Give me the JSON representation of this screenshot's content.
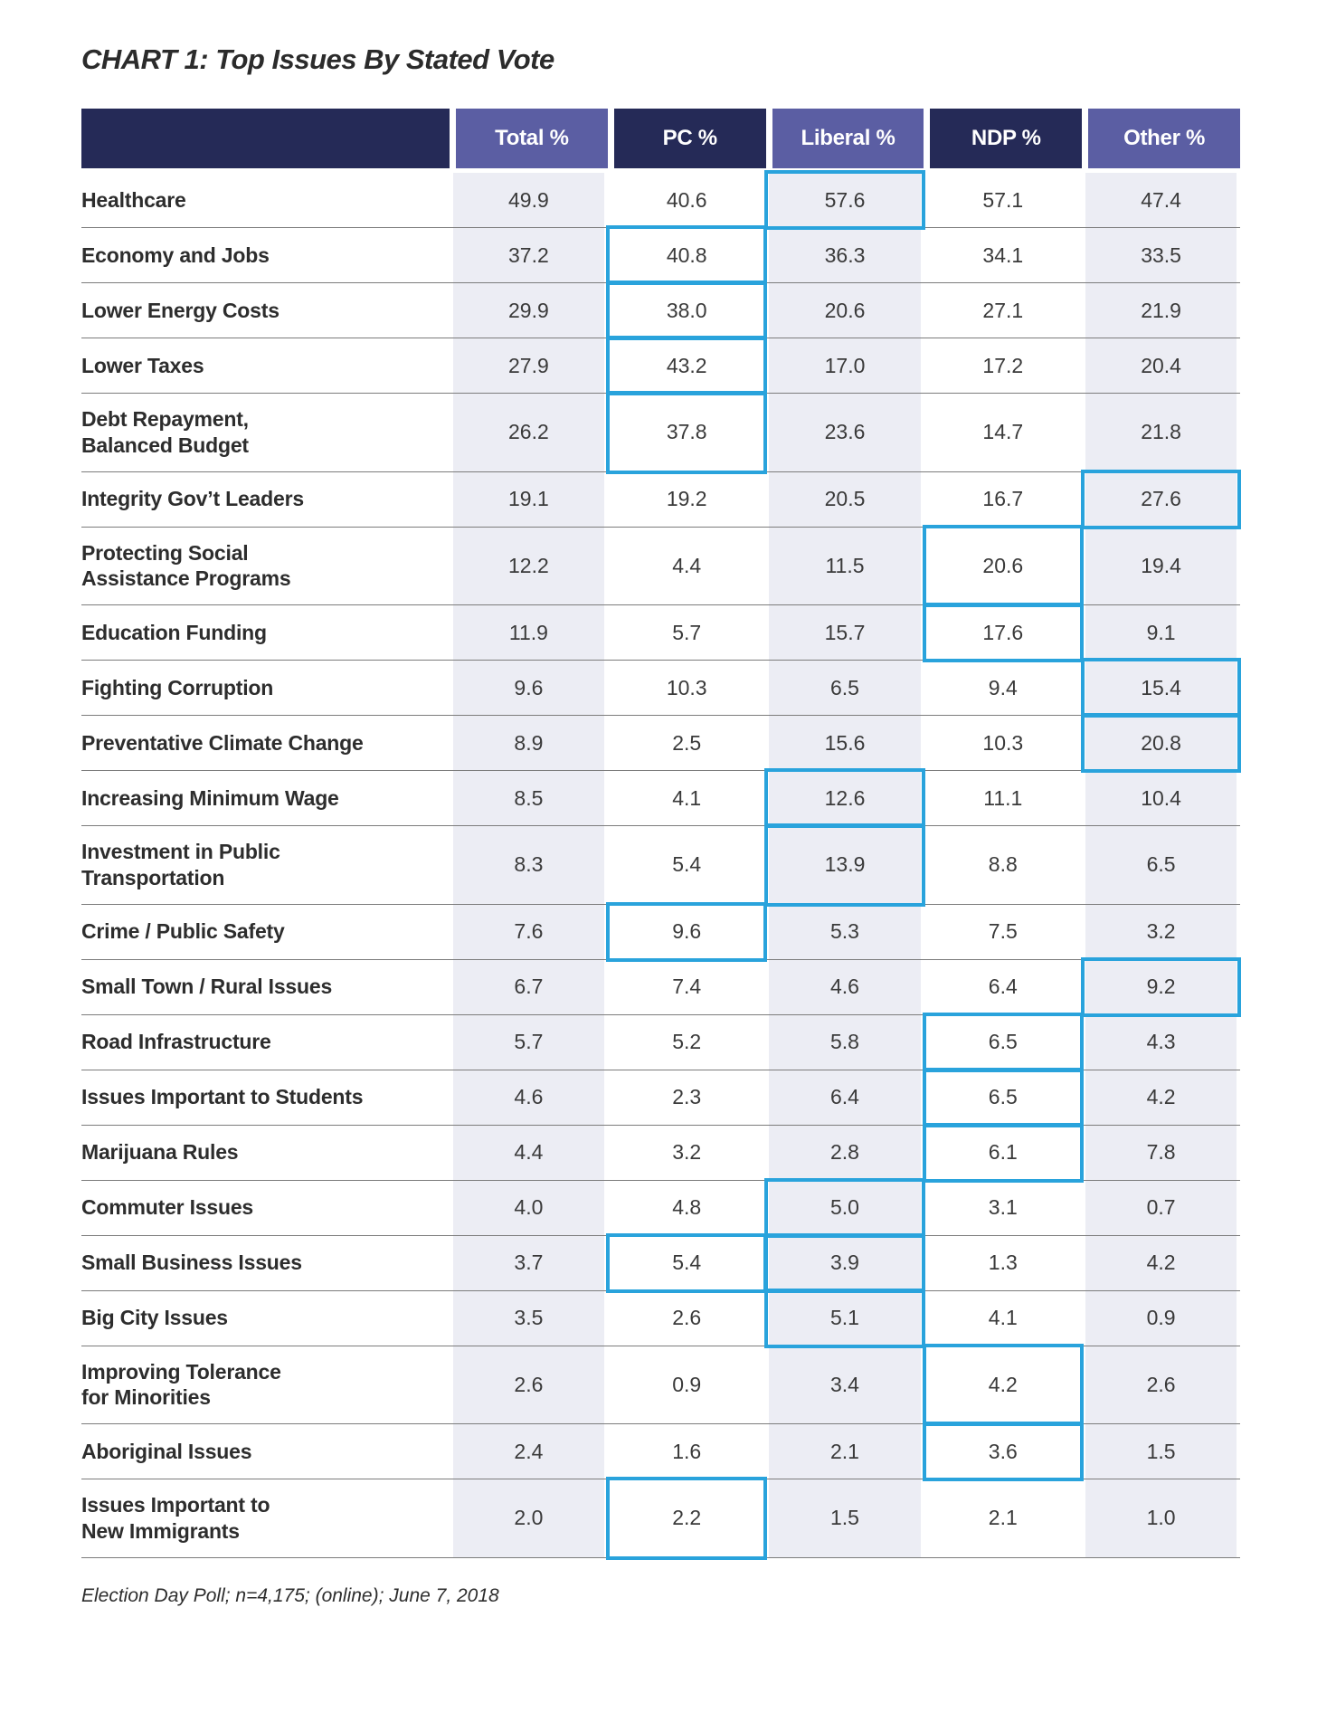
{
  "page": {
    "title": "CHART 1: Top Issues By Stated Vote",
    "footnote": "Election Day Poll; n=4,175; (online); June 7, 2018"
  },
  "colors": {
    "header_navy": "#252a57",
    "header_purple": "#5b5ea3",
    "cell_lavender": "#ecedf4",
    "highlight_border": "#29a3dc",
    "row_divider": "#7c7c7c"
  },
  "chart_data": {
    "type": "table",
    "title": "CHART 1: Top Issues By Stated Vote",
    "footnote": "Election Day Poll; n=4,175; (online); June 7, 2018",
    "columns": [
      "Total %",
      "PC %",
      "Liberal %",
      "NDP %",
      "Other %"
    ],
    "column_keys": [
      "total",
      "pc",
      "liberal",
      "ndp",
      "other"
    ],
    "highlight_note": "cells outlined in blue in source image",
    "rows": [
      {
        "issue": "Healthcare",
        "values": [
          "49.9",
          "40.6",
          "57.6",
          "57.1",
          "47.4"
        ],
        "highlight": [
          "liberal"
        ]
      },
      {
        "issue": "Economy and Jobs",
        "values": [
          "37.2",
          "40.8",
          "36.3",
          "34.1",
          "33.5"
        ],
        "highlight": [
          "pc"
        ]
      },
      {
        "issue": "Lower Energy Costs",
        "values": [
          "29.9",
          "38.0",
          "20.6",
          "27.1",
          "21.9"
        ],
        "highlight": [
          "pc"
        ]
      },
      {
        "issue": "Lower Taxes",
        "values": [
          "27.9",
          "43.2",
          "17.0",
          "17.2",
          "20.4"
        ],
        "highlight": [
          "pc"
        ]
      },
      {
        "issue": "Debt Repayment,\nBalanced Budget",
        "values": [
          "26.2",
          "37.8",
          "23.6",
          "14.7",
          "21.8"
        ],
        "highlight": [
          "pc"
        ]
      },
      {
        "issue": "Integrity Gov’t Leaders",
        "values": [
          "19.1",
          "19.2",
          "20.5",
          "16.7",
          "27.6"
        ],
        "highlight": [
          "other"
        ]
      },
      {
        "issue": "Protecting Social\nAssistance Programs",
        "values": [
          "12.2",
          "4.4",
          "11.5",
          "20.6",
          "19.4"
        ],
        "highlight": [
          "ndp"
        ]
      },
      {
        "issue": "Education Funding",
        "values": [
          "11.9",
          "5.7",
          "15.7",
          "17.6",
          "9.1"
        ],
        "highlight": [
          "ndp"
        ]
      },
      {
        "issue": "Fighting Corruption",
        "values": [
          "9.6",
          "10.3",
          "6.5",
          "9.4",
          "15.4"
        ],
        "highlight": [
          "other"
        ]
      },
      {
        "issue": "Preventative Climate Change",
        "values": [
          "8.9",
          "2.5",
          "15.6",
          "10.3",
          "20.8"
        ],
        "highlight": [
          "other"
        ]
      },
      {
        "issue": "Increasing Minimum Wage",
        "values": [
          "8.5",
          "4.1",
          "12.6",
          "11.1",
          "10.4"
        ],
        "highlight": [
          "liberal"
        ]
      },
      {
        "issue": "Investment in Public\nTransportation",
        "values": [
          "8.3",
          "5.4",
          "13.9",
          "8.8",
          "6.5"
        ],
        "highlight": [
          "liberal"
        ]
      },
      {
        "issue": "Crime / Public Safety",
        "values": [
          "7.6",
          "9.6",
          "5.3",
          "7.5",
          "3.2"
        ],
        "highlight": [
          "pc"
        ]
      },
      {
        "issue": "Small Town / Rural Issues",
        "values": [
          "6.7",
          "7.4",
          "4.6",
          "6.4",
          "9.2"
        ],
        "highlight": [
          "other"
        ]
      },
      {
        "issue": "Road Infrastructure",
        "values": [
          "5.7",
          "5.2",
          "5.8",
          "6.5",
          "4.3"
        ],
        "highlight": [
          "ndp"
        ]
      },
      {
        "issue": "Issues Important to Students",
        "values": [
          "4.6",
          "2.3",
          "6.4",
          "6.5",
          "4.2"
        ],
        "highlight": [
          "ndp"
        ]
      },
      {
        "issue": "Marijuana Rules",
        "values": [
          "4.4",
          "3.2",
          "2.8",
          "6.1",
          "7.8"
        ],
        "highlight": [
          "ndp"
        ]
      },
      {
        "issue": "Commuter Issues",
        "values": [
          "4.0",
          "4.8",
          "5.0",
          "3.1",
          "0.7"
        ],
        "highlight": [
          "liberal"
        ]
      },
      {
        "issue": "Small Business Issues",
        "values": [
          "3.7",
          "5.4",
          "3.9",
          "1.3",
          "4.2"
        ],
        "highlight": [
          "pc",
          "liberal"
        ]
      },
      {
        "issue": "Big City Issues",
        "values": [
          "3.5",
          "2.6",
          "5.1",
          "4.1",
          "0.9"
        ],
        "highlight": [
          "liberal"
        ]
      },
      {
        "issue": "Improving Tolerance\nfor Minorities",
        "values": [
          "2.6",
          "0.9",
          "3.4",
          "4.2",
          "2.6"
        ],
        "highlight": [
          "ndp"
        ]
      },
      {
        "issue": "Aboriginal Issues",
        "values": [
          "2.4",
          "1.6",
          "2.1",
          "3.6",
          "1.5"
        ],
        "highlight": [
          "ndp"
        ]
      },
      {
        "issue": "Issues Important to\nNew Immigrants",
        "values": [
          "2.0",
          "2.2",
          "1.5",
          "2.1",
          "1.0"
        ],
        "highlight": [
          "pc"
        ]
      }
    ]
  }
}
